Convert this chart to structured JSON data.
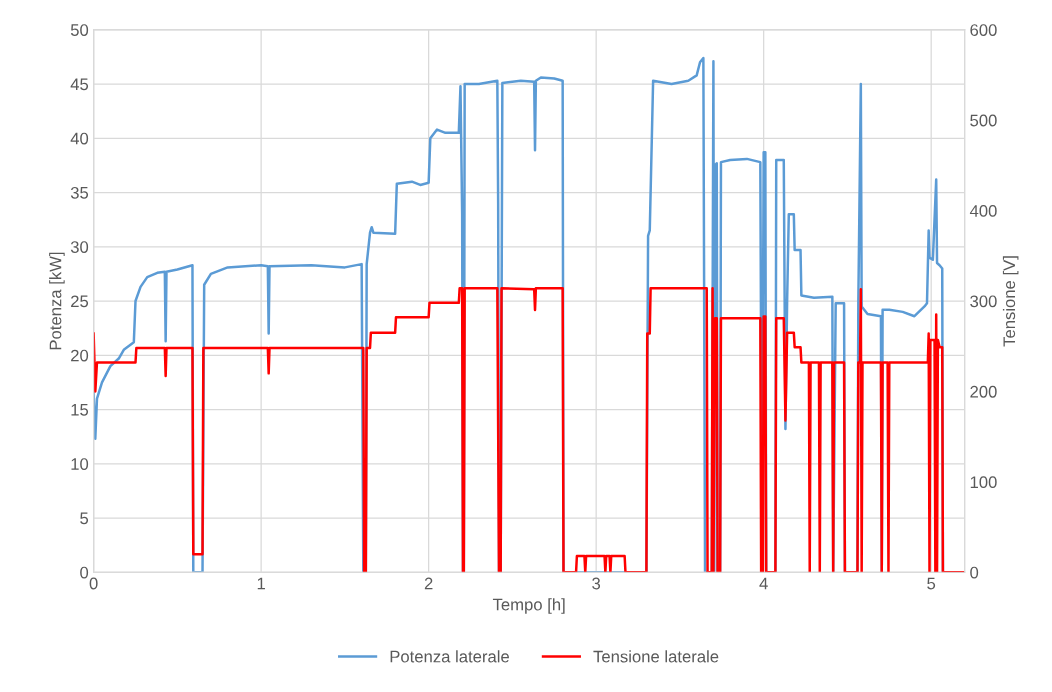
{
  "chart_data": {
    "type": "line",
    "xlabel": "Tempo [h]",
    "ylabel": "Potenza [kW]",
    "y2label": "Tensione [V]",
    "xlim": [
      0,
      5.2
    ],
    "xticks": [
      0,
      1,
      2,
      3,
      4,
      5
    ],
    "ylim": [
      0,
      50
    ],
    "yticks": [
      0,
      5,
      10,
      15,
      20,
      25,
      30,
      35,
      40,
      45,
      50
    ],
    "y2lim": [
      0,
      600
    ],
    "y2ticks": [
      0,
      100,
      200,
      300,
      400,
      500,
      600
    ],
    "grid": true,
    "legend": "bottom",
    "marker": "none",
    "line_style": "solid",
    "series": [
      {
        "name": "Potenza laterale",
        "color": "#5b9bd5",
        "x": [
          0,
          0.01,
          0.02,
          0.05,
          0.1,
          0.15,
          0.18,
          0.24,
          0.25,
          0.28,
          0.32,
          0.38,
          0.425,
          0.43,
          0.435,
          0.5,
          0.59,
          0.595,
          0.65,
          0.66,
          0.7,
          0.8,
          1.0,
          1.04,
          1.045,
          1.05,
          1.3,
          1.5,
          1.6,
          1.61,
          1.625,
          1.63,
          1.65,
          1.66,
          1.67,
          1.8,
          1.81,
          1.9,
          1.95,
          2.0,
          2.01,
          2.05,
          2.1,
          2.18,
          2.19,
          2.2,
          2.205,
          2.21,
          2.215,
          2.3,
          2.41,
          2.415,
          2.42,
          2.43,
          2.44,
          2.55,
          2.63,
          2.635,
          2.64,
          2.67,
          2.75,
          2.8,
          2.805,
          3.3,
          3.31,
          3.32,
          3.34,
          3.45,
          3.55,
          3.6,
          3.62,
          3.64,
          3.65,
          3.69,
          3.7,
          3.705,
          3.71,
          3.72,
          3.725,
          3.74,
          3.745,
          3.8,
          3.9,
          3.98,
          3.99,
          4.0,
          4.01,
          4.015,
          4.07,
          4.075,
          4.12,
          4.13,
          4.14,
          4.15,
          4.18,
          4.185,
          4.22,
          4.225,
          4.3,
          4.41,
          4.415,
          4.43,
          4.48,
          4.485,
          4.56,
          4.565,
          4.58,
          4.585,
          4.62,
          4.7,
          4.705,
          4.71,
          4.75,
          4.83,
          4.9,
          4.96,
          4.975,
          4.985,
          4.99,
          5.01,
          5.03,
          5.035,
          5.05,
          5.066,
          5.07,
          5.2
        ],
        "values": [
          16.5,
          12.3,
          16,
          17.5,
          19,
          19.7,
          20.5,
          21.2,
          25,
          26.3,
          27.2,
          27.6,
          27.7,
          21.3,
          27.7,
          27.9,
          28.3,
          0,
          0,
          26.5,
          27.5,
          28.1,
          28.3,
          28.2,
          22,
          28.2,
          28.3,
          28.1,
          28.4,
          0,
          0,
          28.4,
          31.3,
          31.8,
          31.3,
          31.2,
          35.8,
          36,
          35.7,
          35.9,
          40,
          40.8,
          40.5,
          40.5,
          44.8,
          33,
          0,
          0,
          45,
          45,
          45.3,
          34,
          0,
          0,
          45.1,
          45.3,
          45.2,
          38.9,
          45.3,
          45.6,
          45.5,
          45.3,
          0,
          0,
          31,
          31.5,
          45.3,
          45,
          45.3,
          45.8,
          47,
          47.4,
          0,
          0,
          47.1,
          0,
          37.5,
          37.7,
          0,
          0,
          37.8,
          38,
          38.1,
          37.8,
          0,
          38.7,
          38.7,
          0,
          0,
          38,
          38,
          13.2,
          25,
          33,
          33,
          29.7,
          29.7,
          25.5,
          25.3,
          25.4,
          0,
          24.8,
          24.8,
          0,
          0,
          24.8,
          45,
          24.5,
          23.8,
          23.6,
          0,
          24.2,
          24.2,
          24,
          23.6,
          24.5,
          24.8,
          31.5,
          29,
          28.8,
          36.2,
          28.5,
          28.3,
          28,
          0,
          0
        ]
      },
      {
        "name": "Tensione laterale",
        "color": "#ff0000",
        "axis": "y2",
        "x": [
          0,
          0.01,
          0.02,
          0.25,
          0.255,
          0.425,
          0.43,
          0.435,
          0.59,
          0.595,
          0.65,
          0.655,
          1.04,
          1.045,
          1.05,
          1.61,
          1.615,
          1.625,
          1.63,
          1.65,
          1.655,
          1.8,
          1.805,
          2.0,
          2.005,
          2.18,
          2.185,
          2.2,
          2.205,
          2.21,
          2.215,
          2.41,
          2.42,
          2.43,
          2.435,
          2.63,
          2.635,
          2.64,
          2.8,
          2.805,
          2.88,
          2.885,
          2.93,
          2.935,
          2.94,
          3.05,
          3.055,
          3.06,
          3.08,
          3.085,
          3.09,
          3.17,
          3.175,
          3.3,
          3.305,
          3.32,
          3.325,
          3.66,
          3.665,
          3.69,
          3.695,
          3.7,
          3.71,
          3.72,
          3.725,
          3.74,
          3.745,
          3.98,
          3.985,
          3.995,
          4.0,
          4.01,
          4.015,
          4.07,
          4.075,
          4.12,
          4.13,
          4.14,
          4.18,
          4.185,
          4.22,
          4.225,
          4.27,
          4.275,
          4.28,
          4.33,
          4.335,
          4.34,
          4.41,
          4.415,
          4.42,
          4.48,
          4.485,
          4.56,
          4.565,
          4.575,
          4.58,
          4.585,
          4.59,
          4.7,
          4.705,
          4.71,
          4.74,
          4.745,
          4.75,
          4.98,
          4.985,
          4.99,
          4.995,
          5.02,
          5.025,
          5.03,
          5.035,
          5.04,
          5.05,
          5.066,
          5.07,
          5.2
        ],
        "values": [
          264,
          200,
          232,
          232,
          248,
          248,
          217,
          248,
          248,
          20,
          20,
          248,
          248,
          220,
          248,
          248,
          0,
          0,
          248,
          248,
          265,
          265,
          282,
          282,
          298,
          298,
          314,
          314,
          0,
          0,
          314,
          314,
          0,
          0,
          314,
          313,
          290,
          314,
          314,
          0,
          0,
          18,
          18,
          0,
          18,
          18,
          0,
          18,
          18,
          0,
          18,
          18,
          0,
          0,
          264,
          264,
          314,
          314,
          0,
          0,
          314,
          0,
          281,
          281,
          0,
          0,
          281,
          281,
          0,
          0,
          283,
          283,
          0,
          0,
          281,
          281,
          168,
          265,
          265,
          249,
          249,
          232,
          232,
          0,
          232,
          232,
          0,
          232,
          232,
          0,
          232,
          232,
          0,
          0,
          232,
          232,
          313,
          0,
          232,
          232,
          0,
          232,
          232,
          0,
          232,
          232,
          264,
          0,
          257,
          257,
          0,
          285,
          0,
          257,
          249,
          249,
          0,
          0
        ]
      }
    ]
  }
}
